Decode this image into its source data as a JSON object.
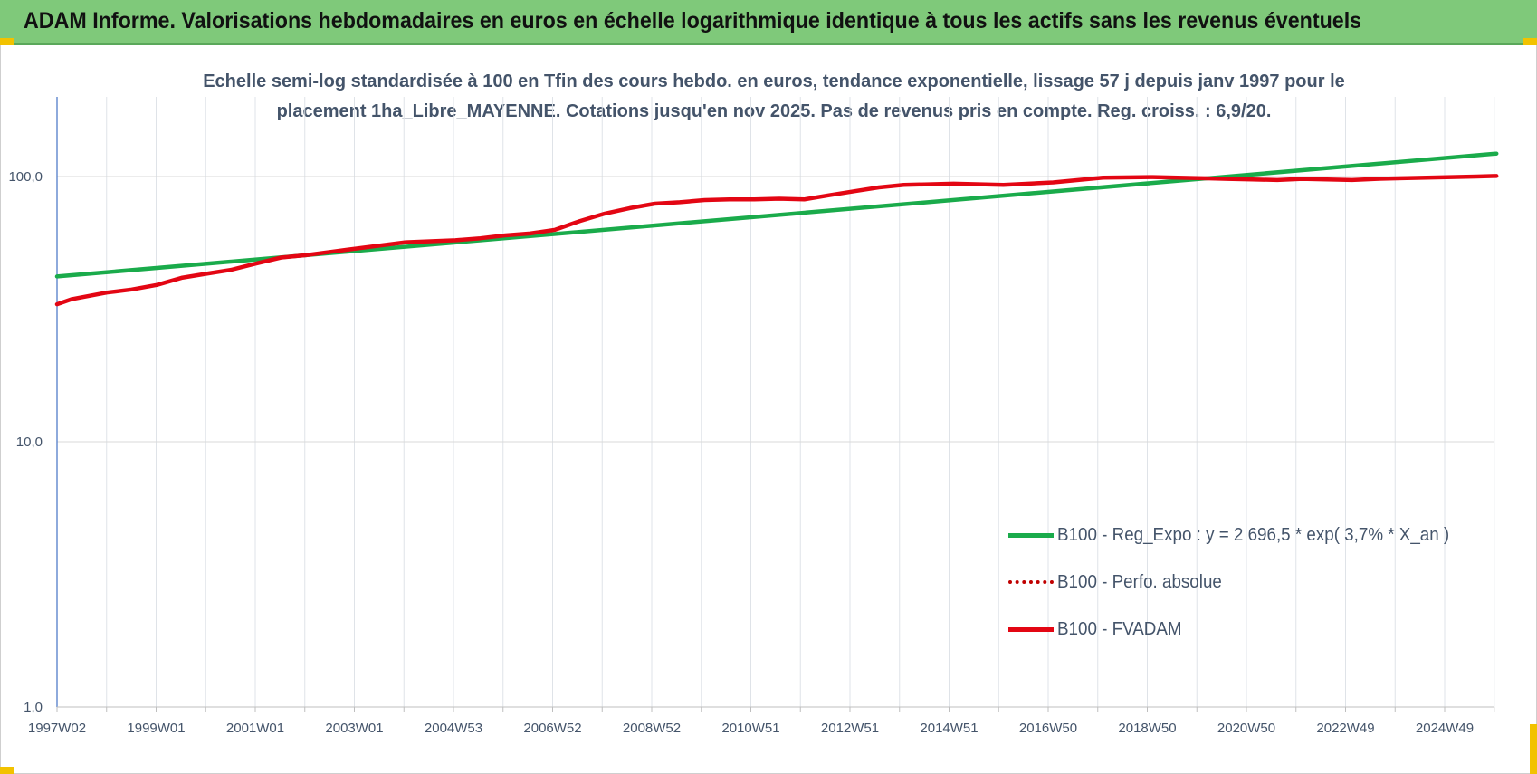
{
  "header": {
    "banner_title": "ADAM Informe. Valorisations hebdomadaires en euros en échelle logarithmique identique à tous les actifs sans les revenus éventuels"
  },
  "colors": {
    "banner_bg": "#7fc97a",
    "trend_green": "#1aab4b",
    "fvadam_red": "#e30613",
    "perfo_red": "#c00000",
    "text": "#44546a",
    "grid": "#d9d9d9"
  },
  "chart_data": {
    "type": "line",
    "title_lines": [
      "Echelle semi-log standardisée à 100 en Tfin des cours hebdo. en euros, tendance exponentielle, lissage 57 j depuis janv 1997 pour le",
      "placement 1ha_Libre_MAYENNE. Cotations jusqu'en nov 2025. Pas de revenus pris en compte. Reg. croiss. : 6,9/20."
    ],
    "y_scale": "log",
    "ylim": [
      1,
      100
    ],
    "y_ticks": [
      "1,0",
      "10,0",
      "100,0"
    ],
    "x_ticks": [
      "1997W02",
      "1999W01",
      "2001W01",
      "2003W01",
      "2004W53",
      "2006W52",
      "2008W52",
      "2010W51",
      "2012W51",
      "2014W51",
      "2016W50",
      "2018W50",
      "2020W50",
      "2022W49",
      "2024W49"
    ],
    "xlim": [
      "1997W02",
      "2025W48"
    ],
    "grid": true,
    "legend_position": "bottom-right",
    "series": [
      {
        "name": "B100 - Reg_Expo : y = 2 696,5 * exp( 3,7% *  X_an )",
        "style": "solid-green",
        "x": [
          1997.0,
          2025.9
        ],
        "y": [
          42.0,
          122.0
        ]
      },
      {
        "name": "B100 - Perfo. absolue",
        "style": "dotted-red",
        "x": [],
        "y": []
      },
      {
        "name": "B100 - FVADAM",
        "style": "solid-red",
        "x": [
          1997.0,
          1997.3,
          1998.0,
          1998.5,
          1999.0,
          1999.5,
          2000.0,
          2000.5,
          2001.0,
          2001.5,
          2002.0,
          2002.5,
          2003.0,
          2003.5,
          2004.0,
          2004.5,
          2005.0,
          2005.5,
          2006.0,
          2006.5,
          2007.0,
          2007.5,
          2008.0,
          2008.5,
          2009.0,
          2009.5,
          2010.0,
          2010.5,
          2011.0,
          2011.5,
          2012.0,
          2012.5,
          2013.0,
          2013.5,
          2014.0,
          2014.5,
          2015.0,
          2016.0,
          2017.0,
          2018.0,
          2019.0,
          2020.0,
          2020.5,
          2021.0,
          2021.5,
          2022.0,
          2022.5,
          2023.0,
          2023.5,
          2024.0,
          2024.5,
          2025.0,
          2025.5,
          2025.9
        ],
        "y": [
          33.0,
          34.5,
          36.5,
          37.5,
          39.0,
          41.5,
          43.0,
          44.5,
          47.0,
          49.5,
          50.5,
          52.0,
          53.5,
          55.0,
          56.5,
          57.0,
          57.5,
          58.5,
          60.0,
          61.0,
          63.0,
          68.0,
          72.5,
          76.0,
          79.0,
          80.0,
          81.5,
          82.0,
          82.0,
          82.5,
          82.0,
          85.0,
          88.0,
          91.0,
          93.0,
          93.5,
          94.0,
          93.0,
          95.0,
          99.0,
          99.5,
          98.5,
          98.0,
          97.5,
          97.0,
          98.0,
          97.5,
          97.0,
          98.0,
          98.5,
          99.0,
          99.5,
          100.0,
          100.5
        ]
      }
    ]
  }
}
